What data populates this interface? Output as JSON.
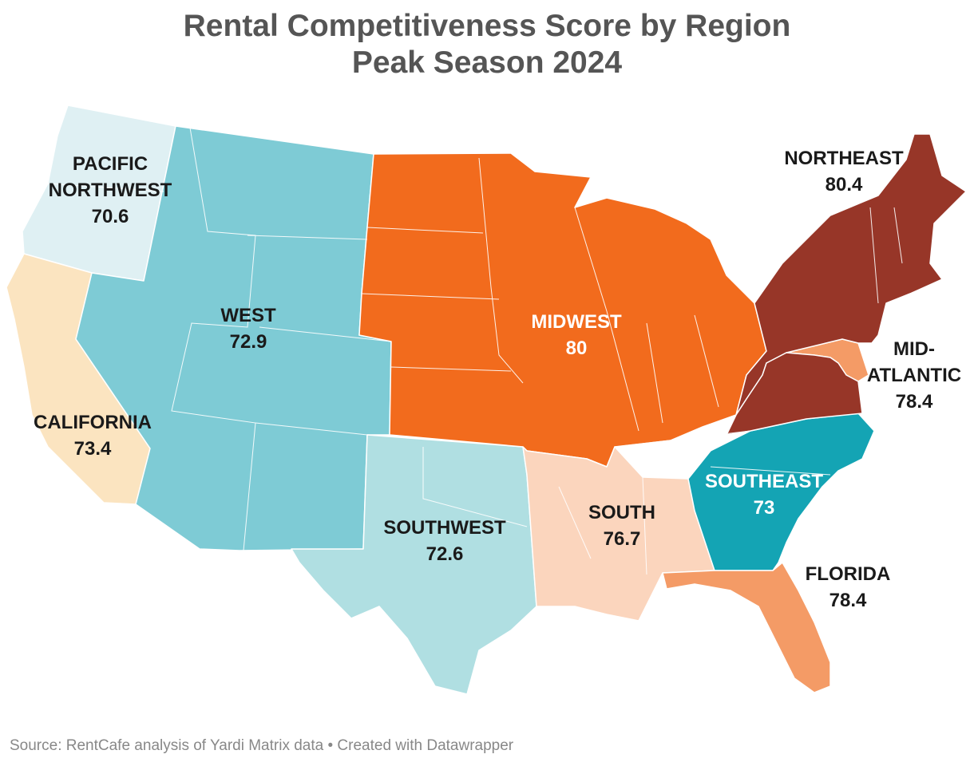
{
  "title": {
    "line1": "Rental Competitiveness Score by Region",
    "line2": "Peak Season 2024"
  },
  "regions": [
    {
      "id": "pacific-northwest",
      "name_lines": [
        "PACIFIC",
        "NORTHWEST"
      ],
      "score": "70.6",
      "color": "#dff0f3",
      "label_color": "#1a1a1a"
    },
    {
      "id": "california",
      "name_lines": [
        "CALIFORNIA"
      ],
      "score": "73.4",
      "color": "#fbe4c0",
      "label_color": "#1a1a1a"
    },
    {
      "id": "west",
      "name_lines": [
        "WEST"
      ],
      "score": "72.9",
      "color": "#7ecbd5",
      "label_color": "#1a1a1a"
    },
    {
      "id": "southwest",
      "name_lines": [
        "SOUTHWEST"
      ],
      "score": "72.6",
      "color": "#b0dfe2",
      "label_color": "#1a1a1a"
    },
    {
      "id": "midwest",
      "name_lines": [
        "MIDWEST"
      ],
      "score": "80",
      "color": "#f26b1d",
      "label_color": "#ffffff"
    },
    {
      "id": "south",
      "name_lines": [
        "SOUTH"
      ],
      "score": "76.7",
      "color": "#fbd5bd",
      "label_color": "#1a1a1a"
    },
    {
      "id": "southeast",
      "name_lines": [
        "SOUTHEAST"
      ],
      "score": "73",
      "color": "#14a4b4",
      "label_color": "#ffffff"
    },
    {
      "id": "florida",
      "name_lines": [
        "FLORIDA"
      ],
      "score": "78.4",
      "color": "#f49b66",
      "label_color": "#1a1a1a"
    },
    {
      "id": "mid-atlantic",
      "name_lines": [
        "MID-",
        "ATLANTIC"
      ],
      "score": "78.4",
      "color": "#f49b66",
      "label_color": "#1a1a1a"
    },
    {
      "id": "northeast",
      "name_lines": [
        "NORTHEAST"
      ],
      "score": "80.4",
      "color": "#973628",
      "label_color": "#1a1a1a"
    }
  ],
  "source": "Source: RentCafe analysis of Yardi Matrix data • Created with Datawrapper"
}
